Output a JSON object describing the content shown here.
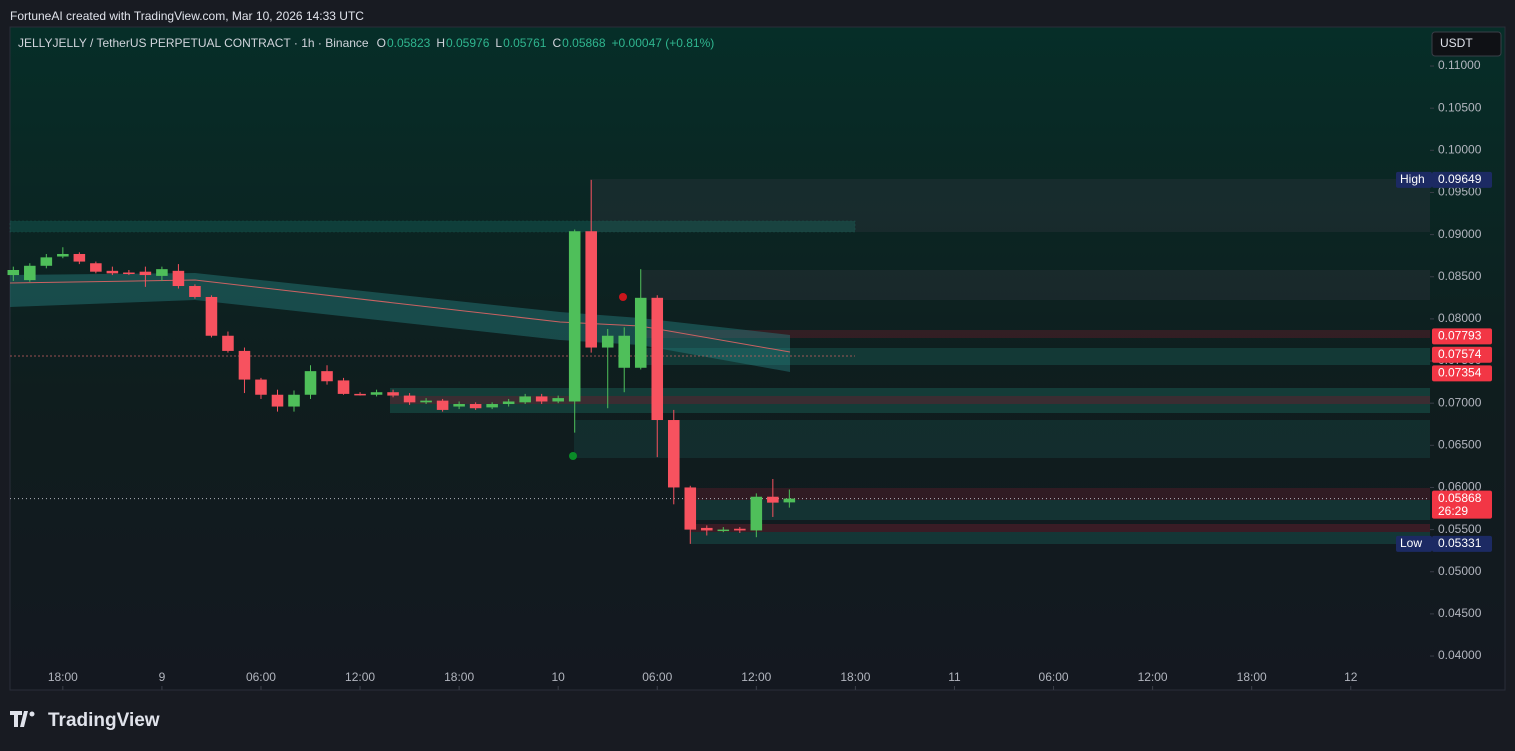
{
  "header": "FortuneAI created with TradingView.com, Mar 10, 2026 14:33 UTC",
  "brand": "TradingView",
  "chart_data": {
    "type": "candlestick",
    "title": "JELLYJELLY / TetherUS PERPETUAL CONTRACT · 1h · Binance",
    "ohlc_letters": [
      "O",
      "H",
      "L",
      "C"
    ],
    "change": "+0.00047 (+0.81%)",
    "currency": "USDT",
    "up_color": "#4fbf5a",
    "down_color": "#f7525f",
    "x": [
      15,
      16,
      17,
      18,
      19,
      20,
      21,
      22,
      23,
      24,
      25,
      26,
      27,
      28,
      29,
      30,
      31,
      32,
      33,
      34,
      35,
      36,
      37,
      38,
      39,
      40,
      41,
      42,
      43,
      44,
      45,
      46,
      47,
      48,
      49,
      50,
      51,
      52,
      53,
      54,
      55,
      56,
      57,
      58,
      59,
      60,
      61,
      62
    ],
    "open": [
      0.0852,
      0.0846,
      0.0863,
      0.0874,
      0.0877,
      0.0866,
      0.0857,
      0.0855,
      0.0856,
      0.0851,
      0.0857,
      0.0839,
      0.0826,
      0.078,
      0.0762,
      0.0728,
      0.071,
      0.0696,
      0.071,
      0.0738,
      0.0727,
      0.0711,
      0.071,
      0.0713,
      0.0709,
      0.0701,
      0.0703,
      0.0696,
      0.0699,
      0.0695,
      0.0699,
      0.0701,
      0.0708,
      0.0702,
      0.0702,
      0.0904,
      0.0766,
      0.0742,
      0.0742,
      0.0825,
      0.068,
      0.06,
      0.0552,
      0.055,
      0.0551,
      0.0549,
      0.0589,
      0.05823
    ],
    "high": [
      0.0862,
      0.0866,
      0.0877,
      0.0885,
      0.0879,
      0.0868,
      0.0862,
      0.0858,
      0.0862,
      0.0862,
      0.0865,
      0.0841,
      0.0828,
      0.0785,
      0.0766,
      0.073,
      0.0716,
      0.0715,
      0.0745,
      0.0745,
      0.073,
      0.0713,
      0.0716,
      0.0716,
      0.0712,
      0.0706,
      0.0705,
      0.0702,
      0.0701,
      0.0701,
      0.0705,
      0.0711,
      0.0711,
      0.0709,
      0.0906,
      0.09649,
      0.0788,
      0.079,
      0.0859,
      0.0828,
      0.0692,
      0.0602,
      0.0555,
      0.0553,
      0.0553,
      0.0593,
      0.061,
      0.05976
    ],
    "low": [
      0.0845,
      0.0844,
      0.086,
      0.0872,
      0.0865,
      0.0854,
      0.0852,
      0.0852,
      0.0838,
      0.0845,
      0.0836,
      0.0824,
      0.0778,
      0.076,
      0.0712,
      0.0705,
      0.069,
      0.069,
      0.0705,
      0.0722,
      0.071,
      0.0709,
      0.0708,
      0.0707,
      0.0698,
      0.0699,
      0.069,
      0.0693,
      0.0692,
      0.0693,
      0.0696,
      0.0699,
      0.0699,
      0.07,
      0.0665,
      0.076,
      0.0694,
      0.0713,
      0.074,
      0.0636,
      0.058,
      0.05331,
      0.0543,
      0.0547,
      0.0546,
      0.0541,
      0.0565,
      0.05761
    ],
    "close": [
      0.0858,
      0.0863,
      0.0873,
      0.0877,
      0.0868,
      0.0856,
      0.0854,
      0.0854,
      0.0852,
      0.0859,
      0.0839,
      0.0826,
      0.078,
      0.0762,
      0.0728,
      0.071,
      0.0696,
      0.071,
      0.0738,
      0.0726,
      0.0711,
      0.071,
      0.0713,
      0.0709,
      0.0701,
      0.0703,
      0.0692,
      0.0699,
      0.0694,
      0.0699,
      0.0702,
      0.0708,
      0.0702,
      0.0706,
      0.0904,
      0.0766,
      0.078,
      0.078,
      0.0825,
      0.068,
      0.06,
      0.055,
      0.0549,
      0.055,
      0.0549,
      0.0589,
      0.0582,
      0.05868
    ],
    "xlim": [
      14.8,
      100.8
    ],
    "xticks": [
      {
        "value": 18,
        "label": "18:00"
      },
      {
        "value": 24,
        "label": "9"
      },
      {
        "value": 30,
        "label": "06:00"
      },
      {
        "value": 36,
        "label": "12:00"
      },
      {
        "value": 42,
        "label": "18:00"
      },
      {
        "value": 48,
        "label": "10"
      },
      {
        "value": 54,
        "label": "06:00"
      },
      {
        "value": 60,
        "label": "12:00"
      },
      {
        "value": 66,
        "label": "18:00"
      },
      {
        "value": 72,
        "label": "11"
      },
      {
        "value": 78,
        "label": "06:00"
      },
      {
        "value": 84,
        "label": "12:00"
      },
      {
        "value": 90,
        "label": "18:00"
      },
      {
        "value": 96,
        "label": "12"
      }
    ],
    "ylim": [
      0.03597,
      0.11463
    ],
    "yticks": [
      {
        "value": 0.04,
        "label": "0.04000"
      },
      {
        "value": 0.045,
        "label": "0.04500"
      },
      {
        "value": 0.05,
        "label": "0.05000"
      },
      {
        "value": 0.055,
        "label": "0.05500"
      },
      {
        "value": 0.06,
        "label": "0.06000"
      },
      {
        "value": 0.065,
        "label": "0.06500"
      },
      {
        "value": 0.07,
        "label": "0.07000"
      },
      {
        "value": 0.075,
        "label": "0.07500"
      },
      {
        "value": 0.08,
        "label": "0.08000"
      },
      {
        "value": 0.085,
        "label": "0.08500"
      },
      {
        "value": 0.09,
        "label": "0.09000"
      },
      {
        "value": 0.095,
        "label": "0.09500"
      },
      {
        "value": 0.1,
        "label": "0.10000"
      },
      {
        "value": 0.105,
        "label": "0.10500"
      },
      {
        "value": 0.11,
        "label": "0.11000"
      }
    ],
    "price_labels": [
      {
        "label": "High",
        "value": 0.09649,
        "color": "#1c2a63"
      },
      {
        "value": 0.07793,
        "color": "#f23645"
      },
      {
        "value": 0.07574,
        "color": "#f23645"
      },
      {
        "value": 0.07354,
        "color": "#f23645"
      },
      {
        "value": 0.05868,
        "countdown": "26:29",
        "color": "#f23645"
      },
      {
        "label": "Low",
        "value": 0.05331,
        "color": "#1c2a63"
      }
    ]
  }
}
